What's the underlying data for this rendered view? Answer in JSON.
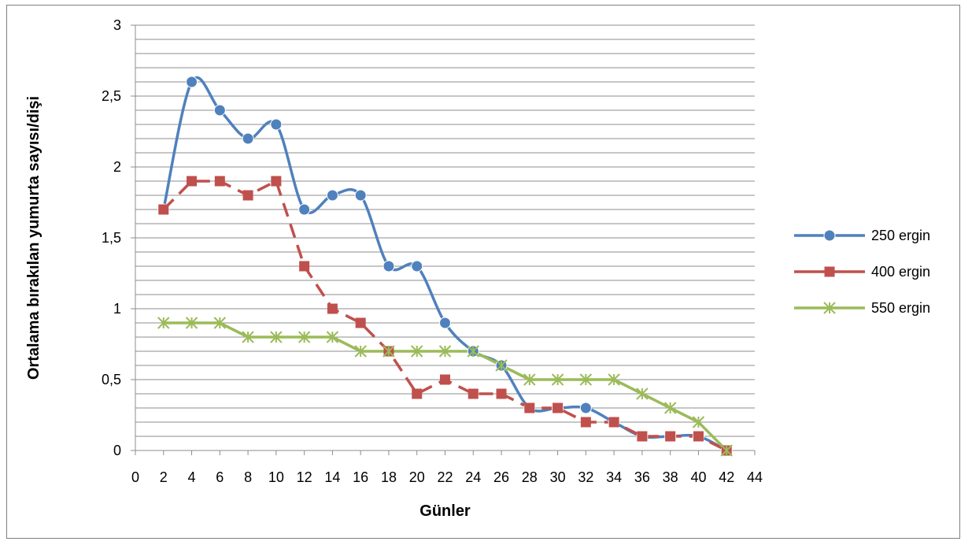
{
  "chart_data": {
    "type": "line",
    "title": "",
    "xlabel": "Günler",
    "ylabel": "Ortalama bırakılan yumurta sayısı/dişi",
    "xlim": [
      0,
      44
    ],
    "ylim": [
      0,
      3
    ],
    "x_ticks": [
      "0",
      "2",
      "4",
      "6",
      "8",
      "10",
      "12",
      "14",
      "16",
      "18",
      "20",
      "22",
      "24",
      "26",
      "28",
      "30",
      "32",
      "34",
      "36",
      "38",
      "40",
      "42",
      "44"
    ],
    "y_ticks": [
      "0",
      "0,5",
      "1",
      "1,5",
      "2",
      "2,5",
      "3"
    ],
    "grid": "horizontal, minor every 0.1",
    "legend_position": "right",
    "x": [
      2,
      4,
      6,
      8,
      10,
      12,
      14,
      16,
      18,
      20,
      22,
      24,
      26,
      28,
      30,
      32,
      34,
      36,
      38,
      40,
      42
    ],
    "series": [
      {
        "name": "250 ergin",
        "color": "#4f81bd",
        "marker": "circle",
        "line_style": "solid-smooth",
        "values": [
          1.7,
          2.6,
          2.4,
          2.2,
          2.3,
          1.7,
          1.8,
          1.8,
          1.3,
          1.3,
          0.9,
          0.7,
          0.6,
          0.3,
          0.3,
          0.3,
          0.2,
          0.1,
          0.1,
          0.1,
          0.0
        ]
      },
      {
        "name": "400 ergin",
        "color": "#c0504d",
        "marker": "square",
        "line_style": "dashed",
        "values": [
          1.7,
          1.9,
          1.9,
          1.8,
          1.9,
          1.3,
          1.0,
          0.9,
          0.7,
          0.4,
          0.5,
          0.4,
          0.4,
          0.3,
          0.3,
          0.2,
          0.2,
          0.1,
          0.1,
          0.1,
          0.0
        ]
      },
      {
        "name": "550 ergin",
        "color": "#9bbb59",
        "marker": "star",
        "line_style": "solid",
        "values": [
          0.9,
          0.9,
          0.9,
          0.8,
          0.8,
          0.8,
          0.8,
          0.7,
          0.7,
          0.7,
          0.7,
          0.7,
          0.6,
          0.5,
          0.5,
          0.5,
          0.5,
          0.4,
          0.3,
          0.2,
          0.0
        ]
      }
    ]
  }
}
